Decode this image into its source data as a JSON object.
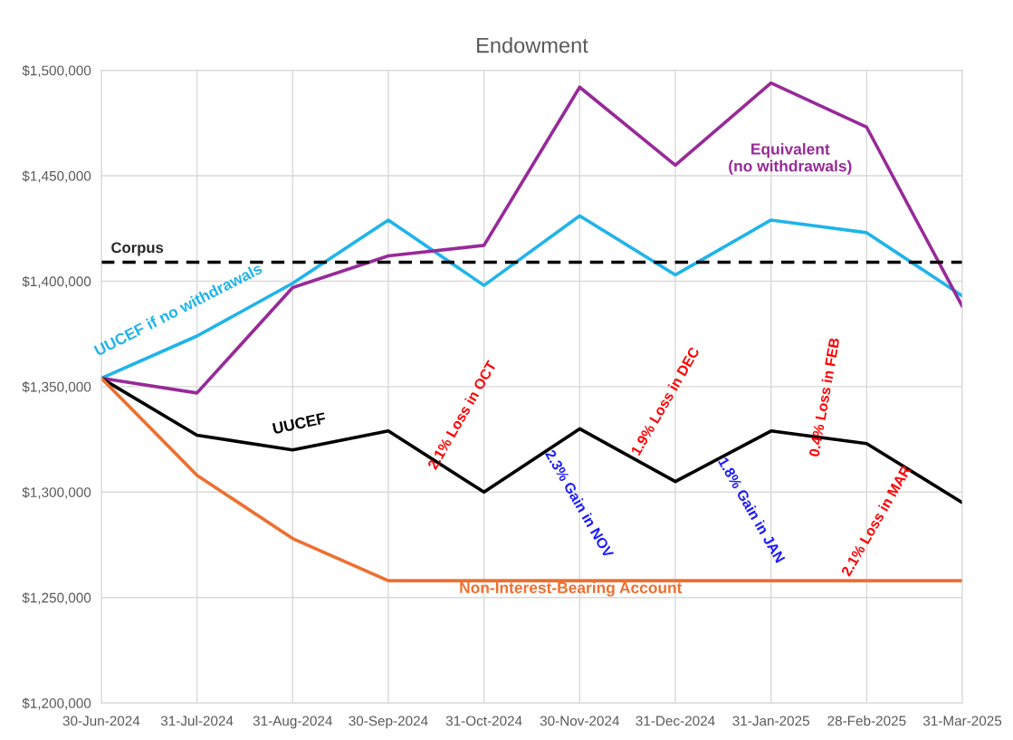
{
  "chart_data": {
    "type": "line",
    "title": "Endowment",
    "categories": [
      "30-Jun-2024",
      "31-Jul-2024",
      "31-Aug-2024",
      "30-Sep-2024",
      "31-Oct-2024",
      "30-Nov-2024",
      "31-Dec-2024",
      "31-Jan-2025",
      "28-Feb-2025",
      "31-Mar-2025"
    ],
    "series": [
      {
        "name": "UUCEF if no withdrawals",
        "color": "#1fb4ea",
        "values": [
          1354000,
          1374000,
          1399000,
          1429000,
          1398000,
          1431000,
          1403000,
          1429000,
          1423000,
          1393000
        ]
      },
      {
        "name": "Equivalent (no withdrawals)",
        "color": "#972a98",
        "values": [
          1354000,
          1347000,
          1397000,
          1412000,
          1417000,
          1492000,
          1455000,
          1494000,
          1473000,
          1388000
        ]
      },
      {
        "name": "UUCEF",
        "color": "#000000",
        "values": [
          1354000,
          1327000,
          1320000,
          1329000,
          1300000,
          1330000,
          1305000,
          1329000,
          1323000,
          1295000
        ]
      },
      {
        "name": "Non-Interest-Bearing Account",
        "color": "#ed7030",
        "values": [
          1354000,
          1308000,
          1278000,
          1258000,
          1258000,
          1258000,
          1258000,
          1258000,
          1258000,
          1258000
        ]
      }
    ],
    "ref_lines": [
      {
        "axis": "y",
        "value": 1409000,
        "label": "Corpus",
        "color": "#000000",
        "line_style": "dashed"
      }
    ],
    "annotations": [
      "2.1% Loss in OCT",
      "2.3% Gain in NOV",
      "1.9% Loss in DEC",
      "1.8% Gain in JAN",
      "0.4% Loss in FEB",
      "2.1% Loss in MAR"
    ],
    "ylim": [
      1200000,
      1500000
    ],
    "yticks": [
      {
        "value": 1200000,
        "label": "$1,200,000"
      },
      {
        "value": 1250000,
        "label": "$1,250,000"
      },
      {
        "value": 1300000,
        "label": "$1,300,000"
      },
      {
        "value": 1350000,
        "label": "$1,350,000"
      },
      {
        "value": 1400000,
        "label": "$1,400,000"
      },
      {
        "value": 1450000,
        "label": "$1,450,000"
      },
      {
        "value": 1500000,
        "label": "$1,500,000"
      }
    ],
    "grid": true,
    "marker": "none",
    "line_style": "solid"
  }
}
